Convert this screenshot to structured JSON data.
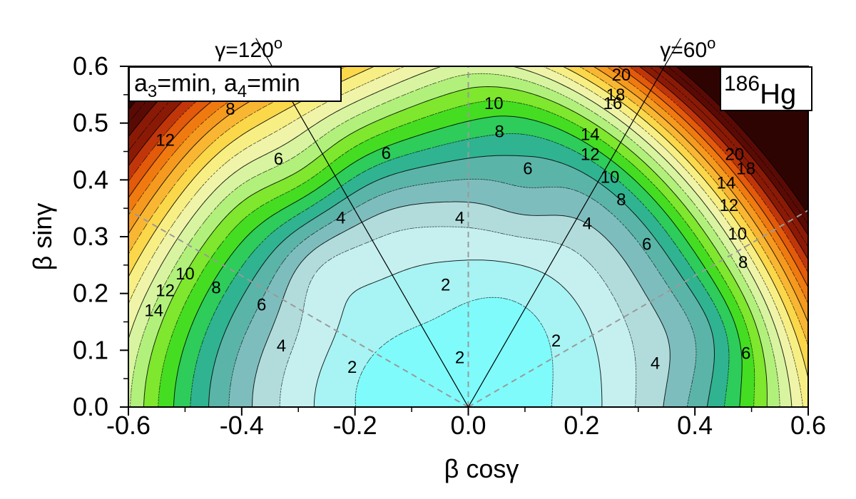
{
  "chart_data": {
    "type": "heatmap",
    "xlabel": "β cosγ",
    "ylabel": "β sinγ",
    "xlim": [
      -0.6,
      0.6
    ],
    "ylim": [
      0.0,
      0.6
    ],
    "x_ticks": [
      "-0.6",
      "-0.4",
      "-0.2",
      "0.0",
      "0.2",
      "0.4",
      "0.6"
    ],
    "x_tick_values": [
      -0.6,
      -0.4,
      -0.2,
      0.0,
      0.2,
      0.4,
      0.6
    ],
    "y_ticks": [
      "0.0",
      "0.1",
      "0.2",
      "0.3",
      "0.4",
      "0.5",
      "0.6"
    ],
    "y_tick_values": [
      0.0,
      0.1,
      0.2,
      0.3,
      0.4,
      0.5,
      0.6
    ],
    "rays": [
      {
        "label": "γ=120",
        "sup": "o",
        "angle_deg": 120
      },
      {
        "label": "γ=60",
        "sup": "o",
        "angle_deg": 60
      }
    ],
    "condition_box": {
      "parts": [
        "a",
        "3",
        "=min, a",
        "4",
        "=min"
      ]
    },
    "nucleus": {
      "mass_number": "186",
      "symbol": "Hg"
    },
    "legend": "none",
    "grid": false,
    "contour_levels": [
      0,
      1,
      2,
      3,
      4,
      5,
      6,
      7,
      8,
      9,
      10,
      11,
      12,
      13,
      14,
      15,
      16,
      17,
      18,
      19,
      20,
      22,
      24
    ],
    "level_colors": [
      "#7ffbfb",
      "#a8f3f3",
      "#c6f0f0",
      "#b2dcdc",
      "#7ebdbd",
      "#5bb4a8",
      "#30b390",
      "#2ecc5a",
      "#44dd22",
      "#7ee72e",
      "#b2f07c",
      "#d8f4a0",
      "#f0f4a8",
      "#f8ef84",
      "#fbd74a",
      "#f8b632",
      "#f59a1e",
      "#f07a10",
      "#e25a0a",
      "#c0360a",
      "#8a1a06",
      "#5a0a04",
      "#2e0402"
    ],
    "contour_labels": [
      {
        "text": "2",
        "x": -0.205,
        "y": 0.07
      },
      {
        "text": "2",
        "x": -0.04,
        "y": 0.215
      },
      {
        "text": "2",
        "x": -0.015,
        "y": 0.087
      },
      {
        "text": "2",
        "x": 0.155,
        "y": 0.117
      },
      {
        "text": "4",
        "x": -0.33,
        "y": 0.108
      },
      {
        "text": "4",
        "x": -0.225,
        "y": 0.333
      },
      {
        "text": "4",
        "x": -0.015,
        "y": 0.333
      },
      {
        "text": "4",
        "x": 0.21,
        "y": 0.323
      },
      {
        "text": "4",
        "x": 0.33,
        "y": 0.077
      },
      {
        "text": "6",
        "x": -0.365,
        "y": 0.18
      },
      {
        "text": "6",
        "x": -0.335,
        "y": 0.437
      },
      {
        "text": "6",
        "x": -0.145,
        "y": 0.447
      },
      {
        "text": "6",
        "x": 0.105,
        "y": 0.42
      },
      {
        "text": "6",
        "x": 0.315,
        "y": 0.287
      },
      {
        "text": "6",
        "x": 0.49,
        "y": 0.095
      },
      {
        "text": "8",
        "x": -0.445,
        "y": 0.21
      },
      {
        "text": "8",
        "x": -0.42,
        "y": 0.525
      },
      {
        "text": "8",
        "x": 0.055,
        "y": 0.485
      },
      {
        "text": "8",
        "x": 0.27,
        "y": 0.365
      },
      {
        "text": "8",
        "x": 0.485,
        "y": 0.255
      },
      {
        "text": "10",
        "x": -0.5,
        "y": 0.235
      },
      {
        "text": "10",
        "x": 0.045,
        "y": 0.535
      },
      {
        "text": "10",
        "x": 0.25,
        "y": 0.405
      },
      {
        "text": "10",
        "x": 0.475,
        "y": 0.305
      },
      {
        "text": "12",
        "x": -0.535,
        "y": 0.205
      },
      {
        "text": "12",
        "x": -0.535,
        "y": 0.47
      },
      {
        "text": "12",
        "x": 0.215,
        "y": 0.445
      },
      {
        "text": "12",
        "x": 0.46,
        "y": 0.355
      },
      {
        "text": "14",
        "x": -0.555,
        "y": 0.17
      },
      {
        "text": "14",
        "x": 0.215,
        "y": 0.48
      },
      {
        "text": "14",
        "x": 0.455,
        "y": 0.395
      },
      {
        "text": "16",
        "x": 0.255,
        "y": 0.535
      },
      {
        "text": "18",
        "x": 0.26,
        "y": 0.55
      },
      {
        "text": "18",
        "x": 0.49,
        "y": 0.42
      },
      {
        "text": "20",
        "x": 0.27,
        "y": 0.585
      },
      {
        "text": "20",
        "x": 0.47,
        "y": 0.445
      }
    ]
  }
}
